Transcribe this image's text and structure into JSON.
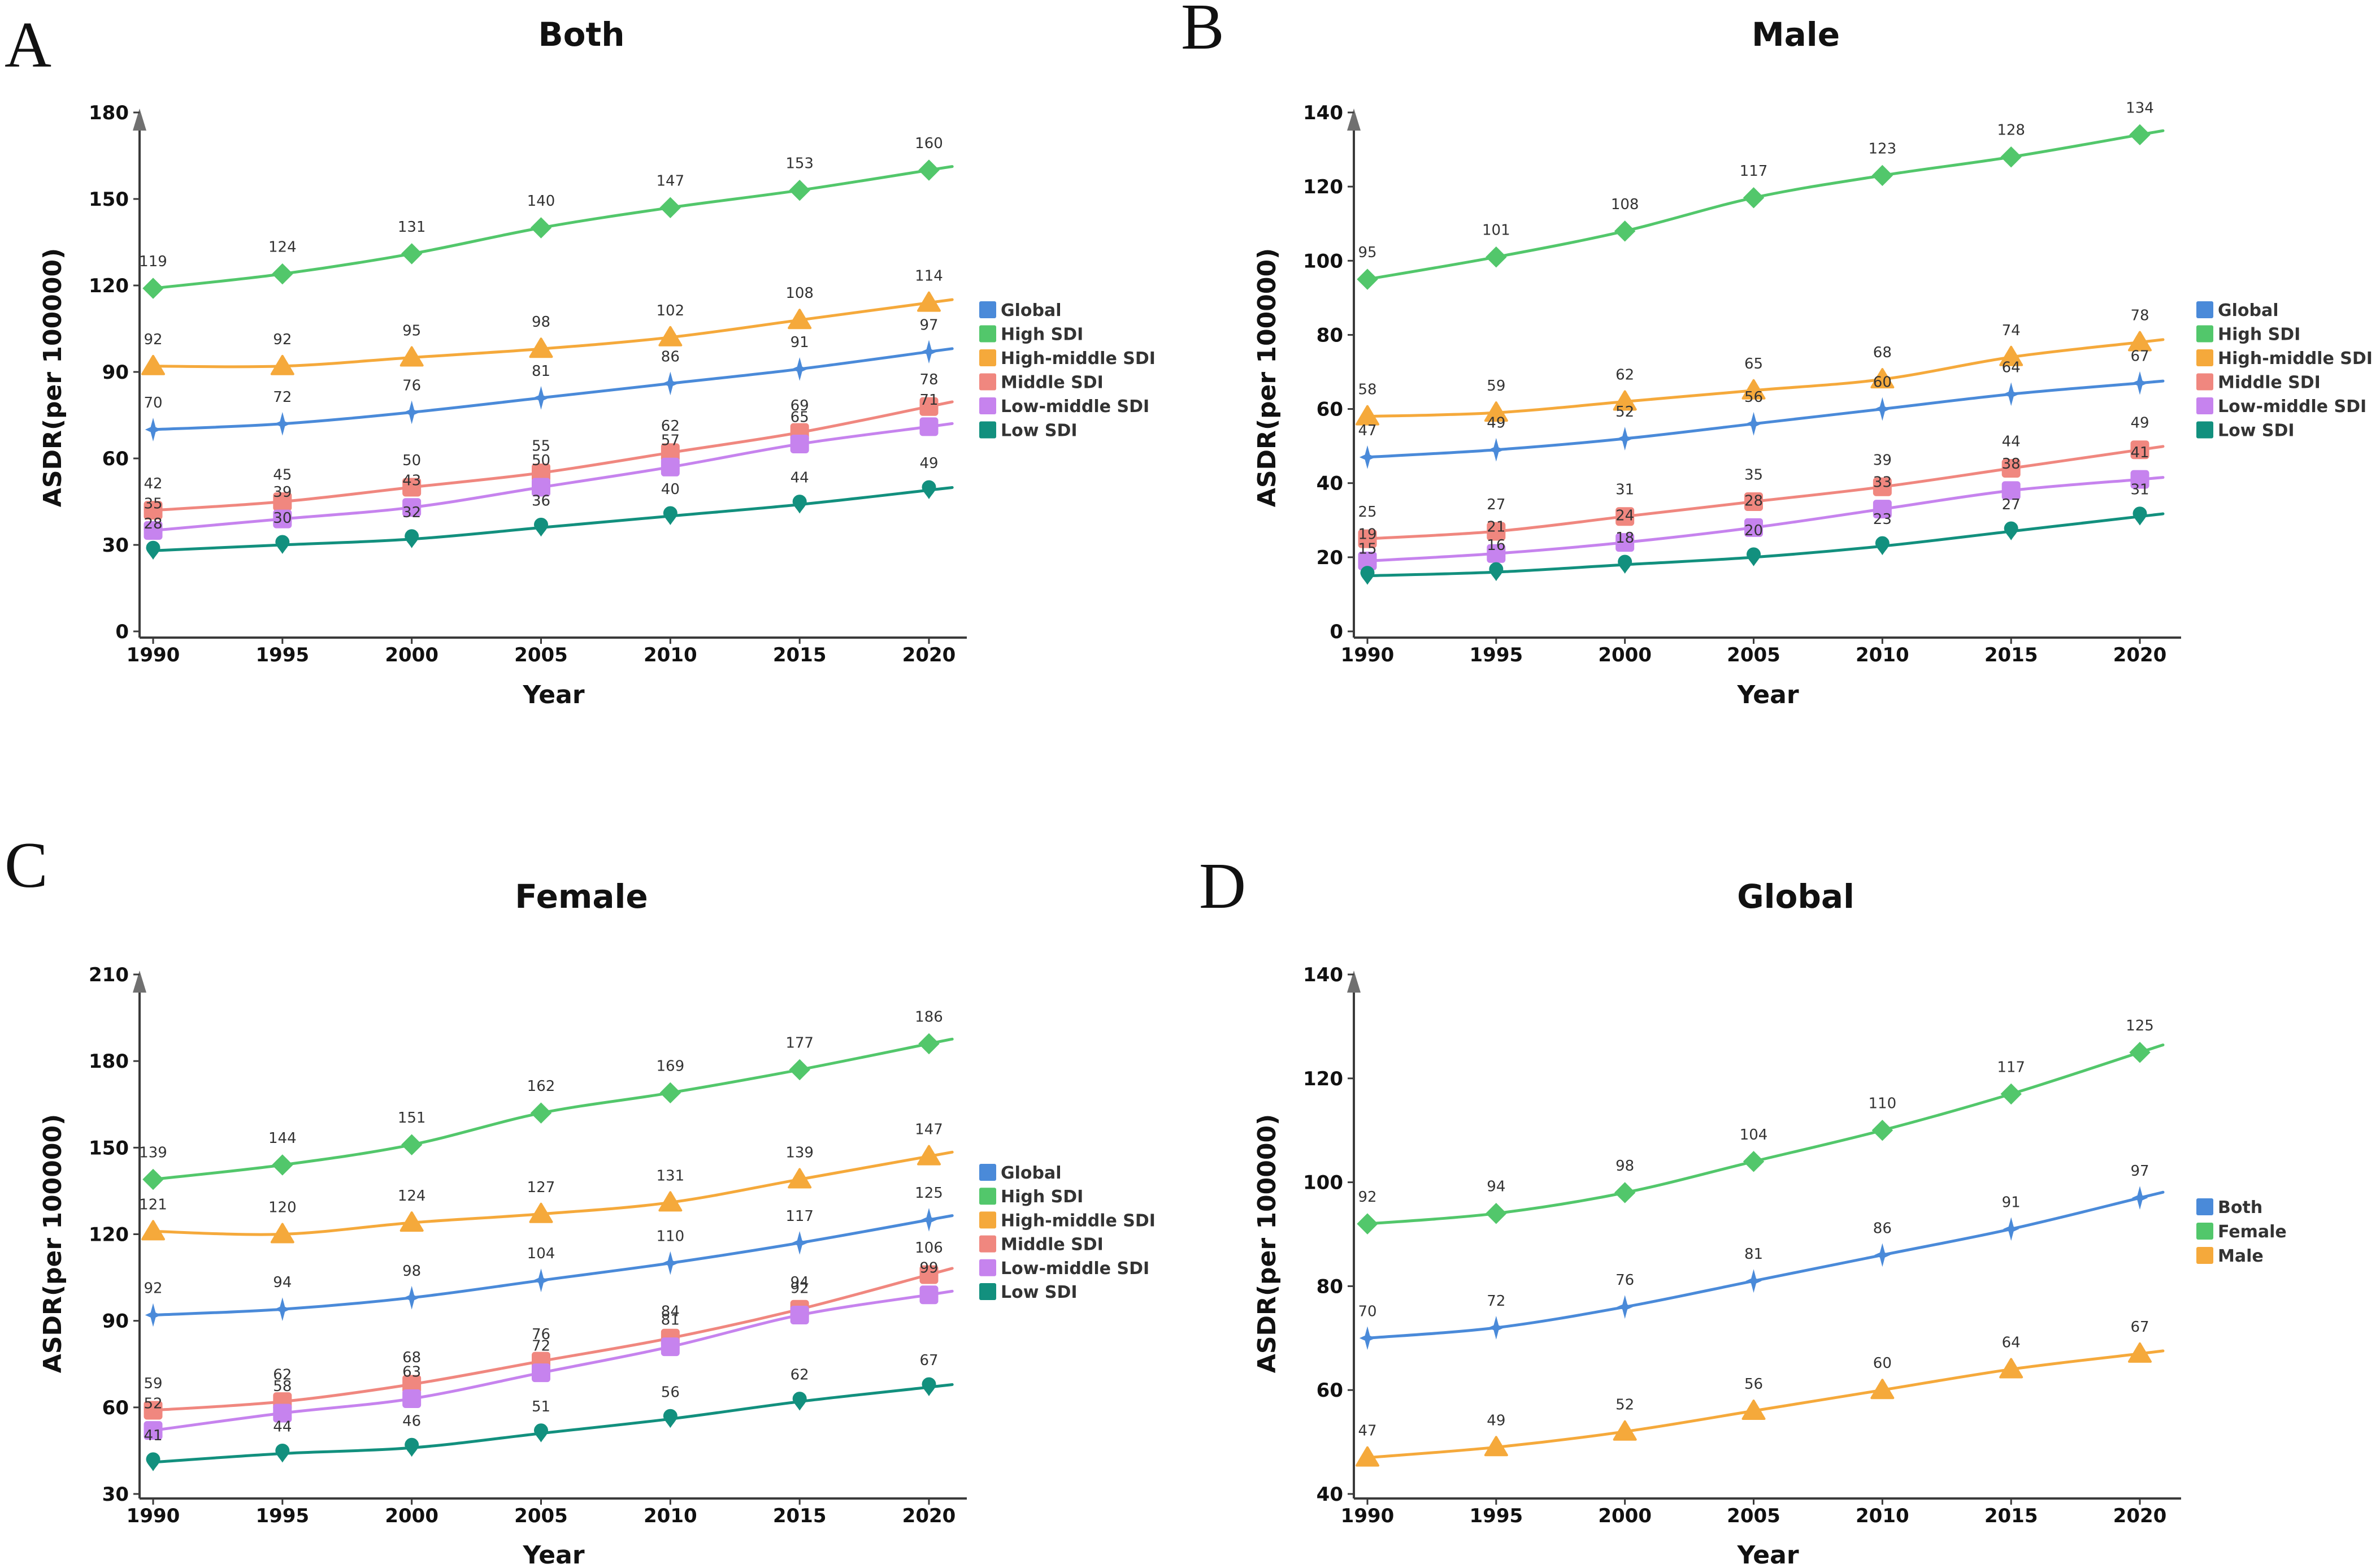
{
  "chart_data": [
    {
      "panel": "A",
      "type": "line",
      "title": "Both",
      "xlabel": "Year",
      "ylabel": "ASDR(per 100000)",
      "x": [
        1990,
        1995,
        2000,
        2005,
        2010,
        2015,
        2020
      ],
      "yticks": [
        0,
        30,
        60,
        90,
        120,
        150,
        180
      ],
      "ylim": [
        0,
        180
      ],
      "legend_position": "right",
      "series": [
        {
          "name": "Global",
          "color": "#4a8ad9",
          "marker": "star",
          "values": [
            70,
            72,
            76,
            81,
            86,
            91,
            97
          ]
        },
        {
          "name": "High SDI",
          "color": "#52c76b",
          "marker": "diamond",
          "values": [
            119,
            124,
            131,
            140,
            147,
            153,
            160
          ]
        },
        {
          "name": "High-middle SDI",
          "color": "#f5a93b",
          "marker": "triangle",
          "values": [
            92,
            92,
            95,
            98,
            102,
            108,
            114
          ]
        },
        {
          "name": "Middle SDI",
          "color": "#f0877f",
          "marker": "square",
          "values": [
            42,
            45,
            50,
            55,
            62,
            69,
            78
          ]
        },
        {
          "name": "Low-middle SDI",
          "color": "#c683ee",
          "marker": "square",
          "values": [
            35,
            39,
            43,
            50,
            57,
            65,
            71
          ]
        },
        {
          "name": "Low SDI",
          "color": "#12907e",
          "marker": "pin",
          "values": [
            28,
            30,
            32,
            36,
            40,
            44,
            49
          ]
        }
      ]
    },
    {
      "panel": "B",
      "type": "line",
      "title": "Male",
      "xlabel": "Year",
      "ylabel": "ASDR(per 100000)",
      "x": [
        1990,
        1995,
        2000,
        2005,
        2010,
        2015,
        2020
      ],
      "yticks": [
        0,
        20,
        40,
        60,
        80,
        100,
        120,
        140
      ],
      "ylim": [
        0,
        140
      ],
      "legend_position": "right",
      "series": [
        {
          "name": "Global",
          "color": "#4a8ad9",
          "marker": "star",
          "values": [
            47,
            49,
            52,
            56,
            60,
            64,
            67
          ]
        },
        {
          "name": "High SDI",
          "color": "#52c76b",
          "marker": "diamond",
          "values": [
            95,
            101,
            108,
            117,
            123,
            128,
            134
          ]
        },
        {
          "name": "High-middle SDI",
          "color": "#f5a93b",
          "marker": "triangle",
          "values": [
            58,
            59,
            62,
            65,
            68,
            74,
            78
          ]
        },
        {
          "name": "Middle SDI",
          "color": "#f0877f",
          "marker": "square",
          "values": [
            25,
            27,
            31,
            35,
            39,
            44,
            49
          ]
        },
        {
          "name": "Low-middle SDI",
          "color": "#c683ee",
          "marker": "square",
          "values": [
            19,
            21,
            24,
            28,
            33,
            38,
            41
          ]
        },
        {
          "name": "Low SDI",
          "color": "#12907e",
          "marker": "pin",
          "values": [
            15,
            16,
            18,
            20,
            23,
            27,
            31
          ]
        }
      ]
    },
    {
      "panel": "C",
      "type": "line",
      "title": "Female",
      "xlabel": "Year",
      "ylabel": "ASDR(per 100000)",
      "x": [
        1990,
        1995,
        2000,
        2005,
        2010,
        2015,
        2020
      ],
      "yticks": [
        30,
        60,
        90,
        120,
        150,
        180,
        210
      ],
      "ylim": [
        30,
        210
      ],
      "legend_position": "right",
      "series": [
        {
          "name": "Global",
          "color": "#4a8ad9",
          "marker": "star",
          "values": [
            92,
            94,
            98,
            104,
            110,
            117,
            125
          ]
        },
        {
          "name": "High SDI",
          "color": "#52c76b",
          "marker": "diamond",
          "values": [
            139,
            144,
            151,
            162,
            169,
            177,
            186
          ]
        },
        {
          "name": "High-middle SDI",
          "color": "#f5a93b",
          "marker": "triangle",
          "values": [
            121,
            120,
            124,
            127,
            131,
            139,
            147
          ]
        },
        {
          "name": "Middle SDI",
          "color": "#f0877f",
          "marker": "square",
          "values": [
            59,
            62,
            68,
            76,
            84,
            94,
            106
          ]
        },
        {
          "name": "Low-middle SDI",
          "color": "#c683ee",
          "marker": "square",
          "values": [
            52,
            58,
            63,
            72,
            81,
            92,
            99
          ]
        },
        {
          "name": "Low SDI",
          "color": "#12907e",
          "marker": "pin",
          "values": [
            41,
            44,
            46,
            51,
            56,
            62,
            67
          ]
        }
      ]
    },
    {
      "panel": "D",
      "type": "line",
      "title": "Global",
      "xlabel": "Year",
      "ylabel": "ASDR(per 100000)",
      "x": [
        1990,
        1995,
        2000,
        2005,
        2010,
        2015,
        2020
      ],
      "yticks": [
        40,
        60,
        80,
        100,
        120,
        140
      ],
      "ylim": [
        40,
        140
      ],
      "legend_position": "right",
      "series": [
        {
          "name": "Both",
          "color": "#4a8ad9",
          "marker": "star",
          "values": [
            70,
            72,
            76,
            81,
            86,
            91,
            97
          ]
        },
        {
          "name": "Female",
          "color": "#52c76b",
          "marker": "diamond",
          "values": [
            92,
            94,
            98,
            104,
            110,
            117,
            125
          ]
        },
        {
          "name": "Male",
          "color": "#f5a93b",
          "marker": "triangle",
          "values": [
            47,
            49,
            52,
            56,
            60,
            64,
            67
          ]
        }
      ]
    }
  ]
}
